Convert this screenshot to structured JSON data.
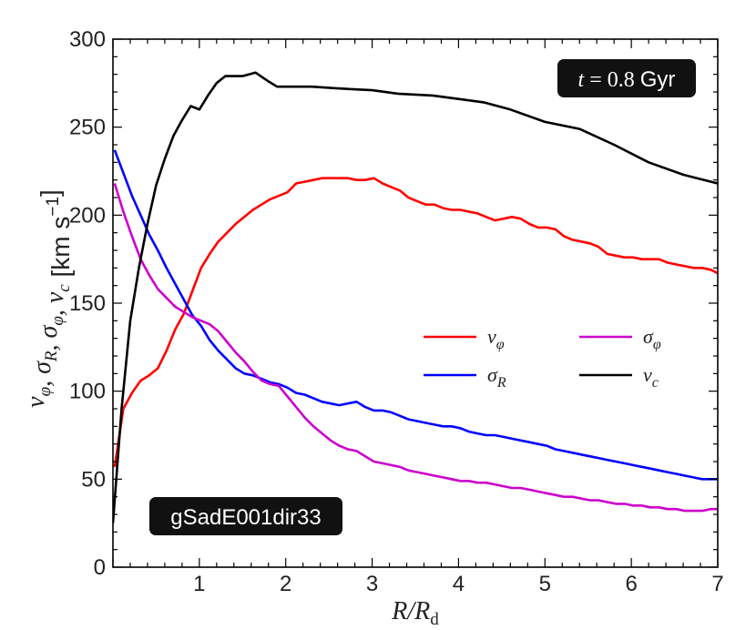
{
  "chart_data": {
    "type": "line",
    "title": "",
    "xlabel": "R/R_d",
    "ylabel": "v_φ, σ_R, σ_φ, v_c [km s^-1]",
    "xlim": [
      0,
      7
    ],
    "ylim": [
      0,
      300
    ],
    "xticks": [
      1,
      2,
      3,
      4,
      5,
      6,
      7
    ],
    "yticks": [
      0,
      50,
      100,
      150,
      200,
      250,
      300
    ],
    "legend_position": "center-right",
    "annotations": {
      "time": {
        "var": "t",
        "eq": "=",
        "num": "0.8",
        "unit": "Gyr"
      },
      "galaxy": "gSadE001dir33"
    },
    "series": [
      {
        "name": "v_φ",
        "legend_main": "v",
        "legend_sub": "φ",
        "color": "#ff0000",
        "x": [
          0.02,
          0.12,
          0.22,
          0.32,
          0.42,
          0.52,
          0.62,
          0.72,
          0.82,
          0.92,
          1.02,
          1.12,
          1.22,
          1.32,
          1.42,
          1.52,
          1.62,
          1.72,
          1.82,
          1.92,
          2.02,
          2.12,
          2.22,
          2.32,
          2.42,
          2.52,
          2.62,
          2.72,
          2.82,
          2.92,
          3.02,
          3.12,
          3.22,
          3.32,
          3.42,
          3.52,
          3.62,
          3.72,
          3.82,
          3.92,
          4.02,
          4.12,
          4.22,
          4.32,
          4.42,
          4.52,
          4.62,
          4.72,
          4.82,
          4.92,
          5.02,
          5.12,
          5.22,
          5.32,
          5.42,
          5.52,
          5.62,
          5.72,
          5.82,
          5.92,
          6.02,
          6.12,
          6.22,
          6.32,
          6.42,
          6.52,
          6.62,
          6.72,
          6.82,
          6.92,
          7.0
        ],
        "y": [
          57,
          90,
          99,
          106,
          109,
          113,
          123,
          135,
          144,
          157,
          170,
          178,
          185,
          190,
          195,
          199,
          203,
          206,
          209,
          211,
          213,
          218,
          219,
          220,
          221,
          221,
          221,
          221,
          220,
          220,
          221,
          218,
          216,
          214,
          210,
          208,
          206,
          206,
          204,
          203,
          203,
          202,
          201,
          199,
          197,
          198,
          199,
          198,
          195,
          193,
          193,
          192,
          188,
          186,
          185,
          184,
          182,
          178,
          177,
          176,
          176,
          175,
          175,
          175,
          173,
          172,
          171,
          170,
          170,
          169,
          167
        ]
      },
      {
        "name": "σ_R",
        "legend_main": "σ",
        "legend_sub": "R",
        "color": "#0000ff",
        "x": [
          0.02,
          0.12,
          0.22,
          0.32,
          0.42,
          0.52,
          0.62,
          0.72,
          0.82,
          0.92,
          1.02,
          1.12,
          1.22,
          1.32,
          1.42,
          1.52,
          1.62,
          1.72,
          1.82,
          1.92,
          2.02,
          2.12,
          2.22,
          2.32,
          2.42,
          2.52,
          2.62,
          2.72,
          2.82,
          2.92,
          3.02,
          3.12,
          3.22,
          3.32,
          3.42,
          3.52,
          3.62,
          3.72,
          3.82,
          3.92,
          4.02,
          4.12,
          4.22,
          4.32,
          4.42,
          4.52,
          4.62,
          4.72,
          4.82,
          4.92,
          5.02,
          5.12,
          5.22,
          5.32,
          5.42,
          5.52,
          5.62,
          5.72,
          5.82,
          5.92,
          6.02,
          6.12,
          6.22,
          6.32,
          6.42,
          6.52,
          6.62,
          6.72,
          6.82,
          6.92,
          7.0
        ],
        "y": [
          237,
          224,
          211,
          200,
          189,
          180,
          170,
          161,
          152,
          143,
          137,
          129,
          123,
          118,
          113,
          110,
          109,
          107,
          105,
          104,
          102,
          99,
          98,
          96,
          94,
          93,
          92,
          93,
          94,
          91,
          89,
          89,
          88,
          86,
          84,
          83,
          82,
          81,
          80,
          80,
          79,
          77,
          76,
          75,
          75,
          74,
          73,
          72,
          71,
          70,
          69,
          67,
          66,
          65,
          64,
          63,
          62,
          61,
          60,
          59,
          58,
          57,
          56,
          55,
          54,
          53,
          52,
          51,
          50,
          50,
          50
        ]
      },
      {
        "name": "σ_φ",
        "legend_main": "σ",
        "legend_sub": "φ",
        "color": "#cc00cc",
        "x": [
          0.02,
          0.12,
          0.22,
          0.32,
          0.42,
          0.52,
          0.62,
          0.72,
          0.82,
          0.92,
          1.02,
          1.12,
          1.22,
          1.32,
          1.42,
          1.52,
          1.62,
          1.72,
          1.82,
          1.92,
          2.02,
          2.12,
          2.22,
          2.32,
          2.42,
          2.52,
          2.62,
          2.72,
          2.82,
          2.92,
          3.02,
          3.12,
          3.22,
          3.32,
          3.42,
          3.52,
          3.62,
          3.72,
          3.82,
          3.92,
          4.02,
          4.12,
          4.22,
          4.32,
          4.42,
          4.52,
          4.62,
          4.72,
          4.82,
          4.92,
          5.02,
          5.12,
          5.22,
          5.32,
          5.42,
          5.52,
          5.62,
          5.72,
          5.82,
          5.92,
          6.02,
          6.12,
          6.22,
          6.32,
          6.42,
          6.52,
          6.62,
          6.72,
          6.82,
          6.92,
          7.0
        ],
        "y": [
          218,
          202,
          188,
          175,
          166,
          158,
          153,
          148,
          145,
          142,
          140,
          138,
          134,
          128,
          122,
          117,
          111,
          106,
          104,
          103,
          97,
          91,
          85,
          80,
          76,
          72,
          69,
          67,
          66,
          63,
          60,
          59,
          58,
          57,
          55,
          54,
          53,
          52,
          51,
          50,
          49,
          49,
          48,
          48,
          47,
          46,
          45,
          45,
          44,
          43,
          42,
          41,
          40,
          40,
          39,
          38,
          38,
          37,
          36,
          36,
          35,
          35,
          34,
          34,
          33,
          33,
          32,
          32,
          32,
          33,
          33
        ]
      },
      {
        "name": "v_c",
        "legend_main": "v",
        "legend_sub": "c",
        "color": "#000000",
        "x": [
          0.0,
          0.1,
          0.2,
          0.3,
          0.4,
          0.5,
          0.6,
          0.7,
          0.8,
          0.9,
          1.0,
          1.1,
          1.2,
          1.3,
          1.5,
          1.65,
          1.8,
          1.9,
          2.0,
          2.3,
          2.6,
          3.0,
          3.3,
          3.7,
          4.0,
          4.3,
          4.6,
          5.0,
          5.4,
          5.8,
          6.2,
          6.6,
          7.0
        ],
        "y": [
          25,
          90,
          140,
          170,
          195,
          217,
          232,
          245,
          254,
          262,
          260,
          268,
          275,
          279,
          279,
          281,
          276,
          273,
          273,
          273,
          272,
          271,
          269,
          268,
          266,
          264,
          260,
          253,
          249,
          240,
          230,
          223,
          218
        ]
      }
    ]
  }
}
